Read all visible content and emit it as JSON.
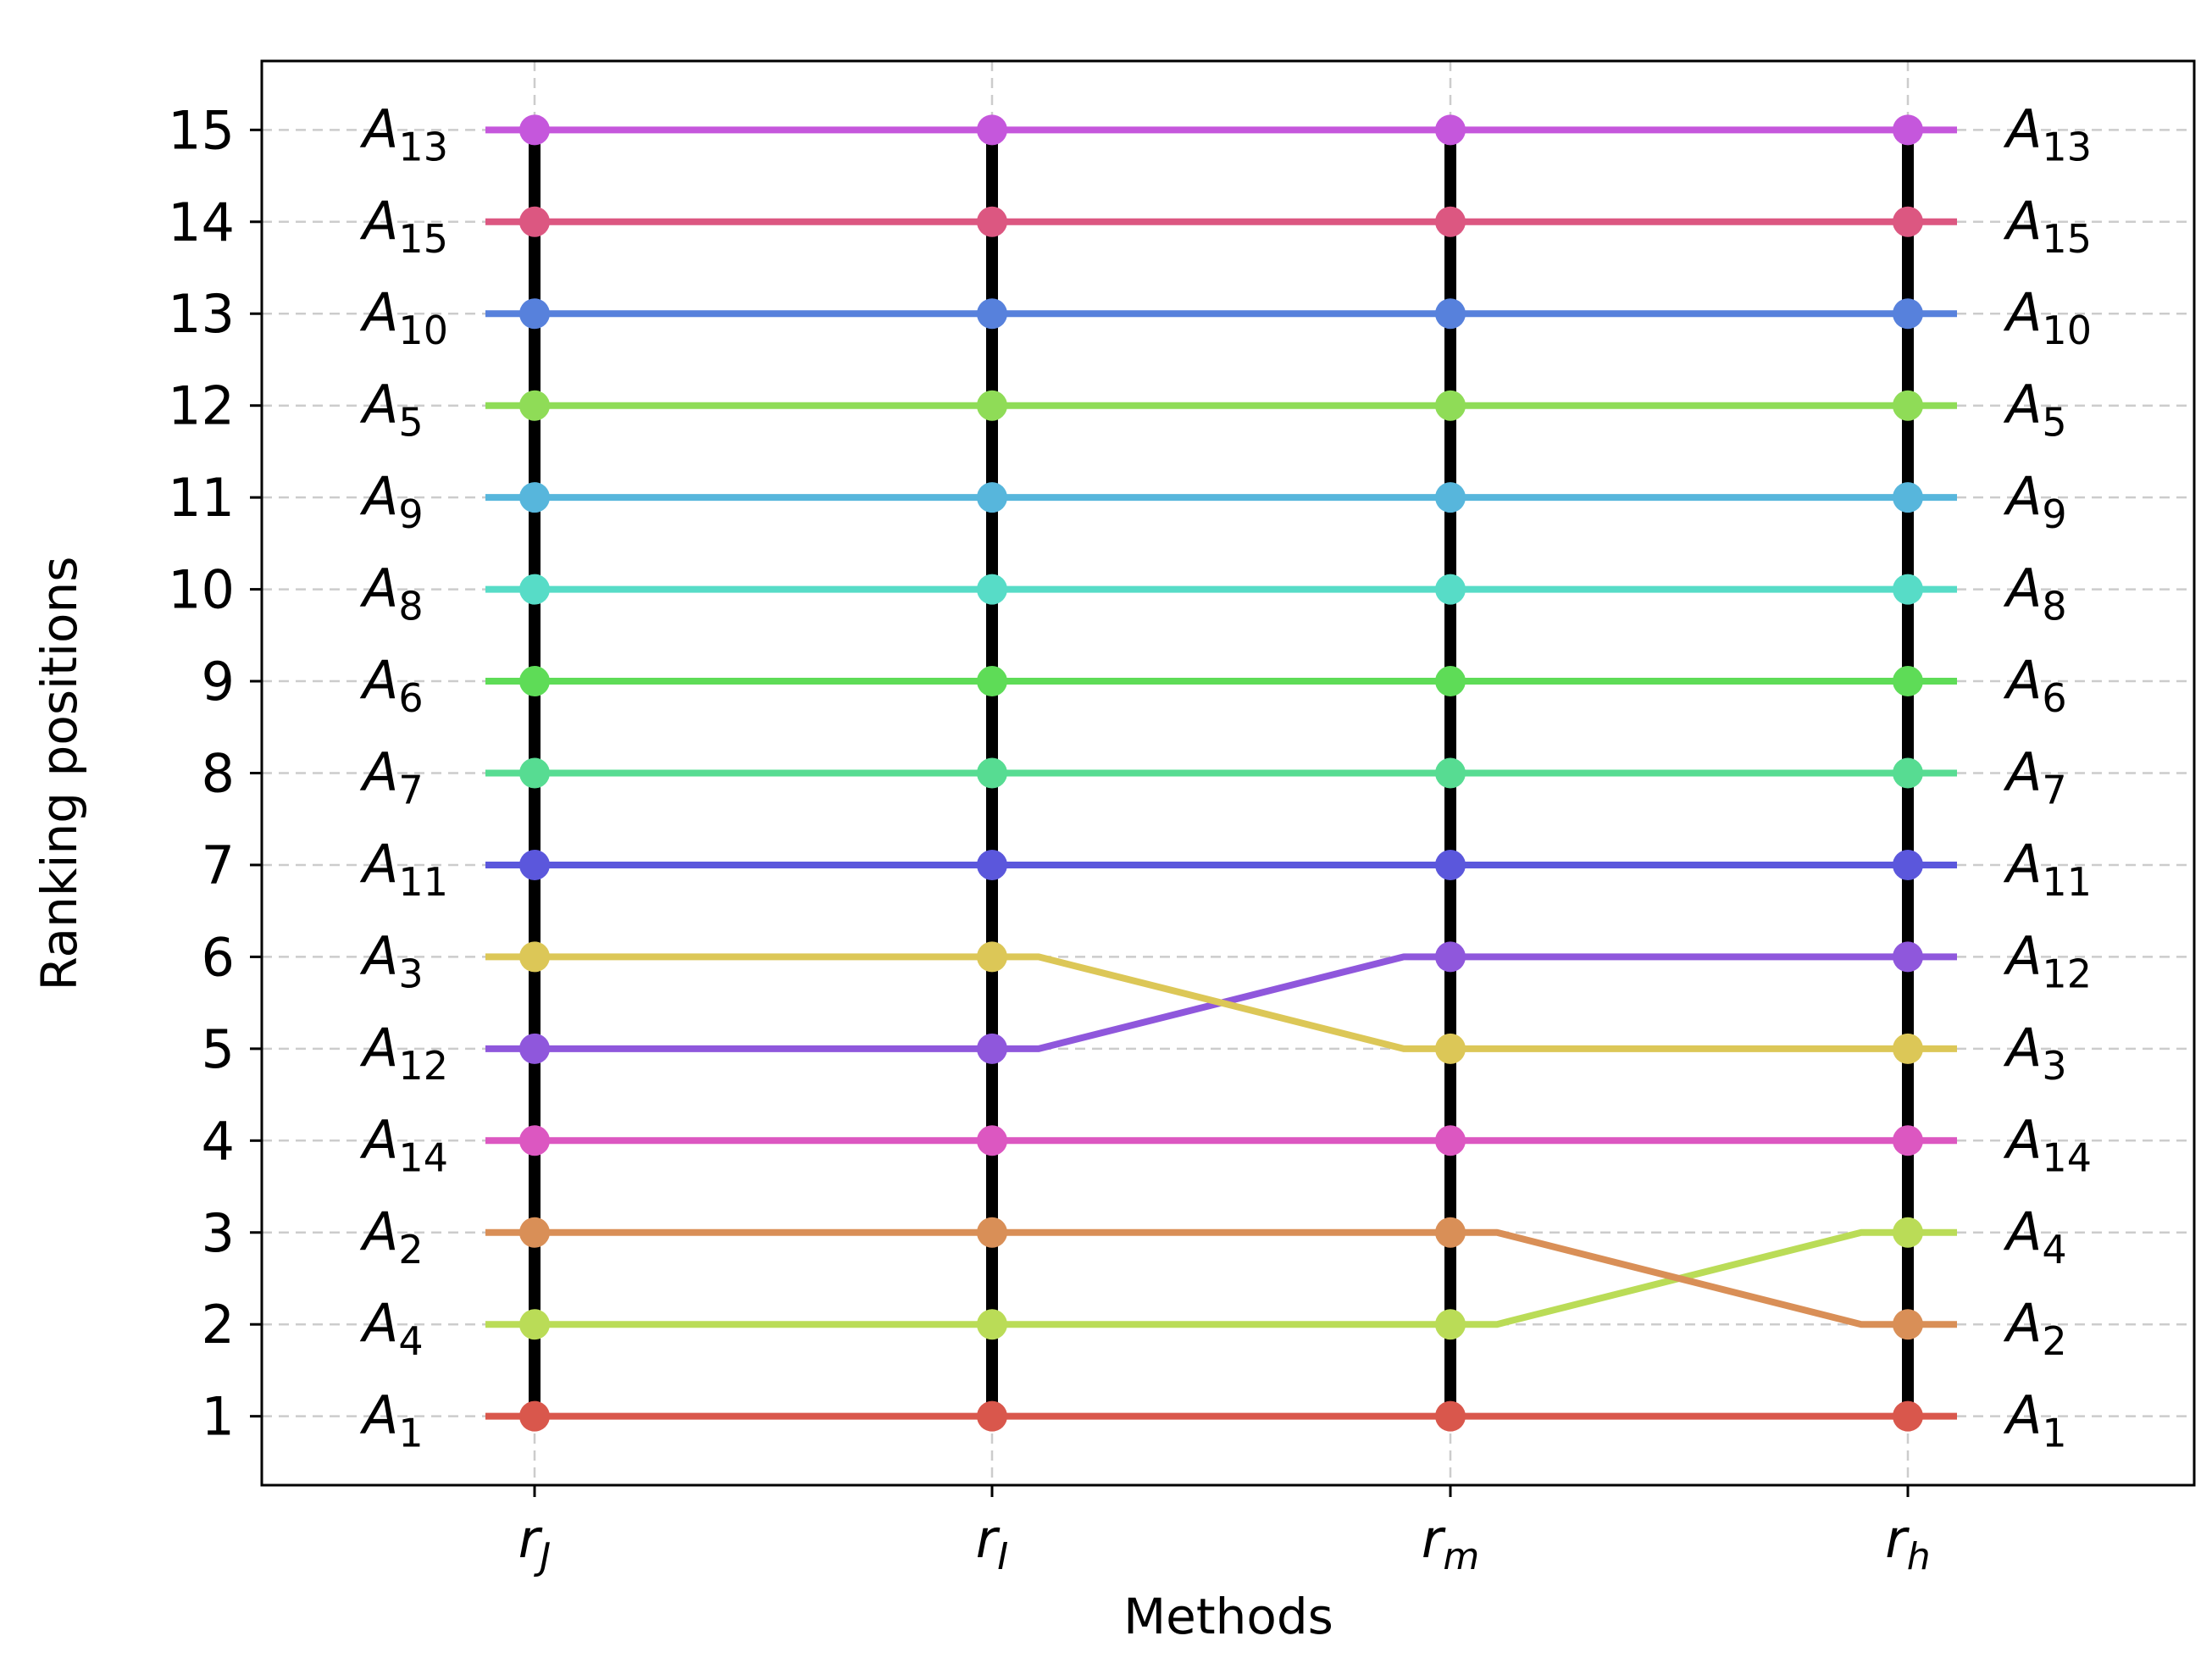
{
  "chart_data": {
    "type": "line",
    "title": "",
    "xlabel": "Methods",
    "ylabel": "Ranking positions",
    "ylim": [
      0.25,
      15.75
    ],
    "grid": true,
    "x_ticks": [
      {
        "base": "r",
        "sub": "J"
      },
      {
        "base": "r",
        "sub": "I"
      },
      {
        "base": "r",
        "sub": "m"
      },
      {
        "base": "r",
        "sub": "h"
      }
    ],
    "y_ticks": [
      "1",
      "2",
      "3",
      "4",
      "5",
      "6",
      "7",
      "8",
      "9",
      "10",
      "11",
      "12",
      "13",
      "14",
      "15"
    ],
    "series": [
      {
        "name": "A1",
        "label_base": "A",
        "label_sub": "1",
        "color": "#d9574c",
        "ranks": [
          1,
          1,
          1,
          1
        ]
      },
      {
        "name": "A4",
        "label_base": "A",
        "label_sub": "4",
        "color": "#badc57",
        "ranks": [
          2,
          2,
          2,
          3
        ]
      },
      {
        "name": "A2",
        "label_base": "A",
        "label_sub": "2",
        "color": "#d98f57",
        "ranks": [
          3,
          3,
          3,
          2
        ]
      },
      {
        "name": "A14",
        "label_base": "A",
        "label_sub": "14",
        "color": "#dc57c1",
        "ranks": [
          4,
          4,
          4,
          4
        ]
      },
      {
        "name": "A12",
        "label_base": "A",
        "label_sub": "12",
        "color": "#8f57dc",
        "ranks": [
          5,
          5,
          6,
          6
        ]
      },
      {
        "name": "A3",
        "label_base": "A",
        "label_sub": "3",
        "color": "#dcc757",
        "ranks": [
          6,
          6,
          5,
          5
        ]
      },
      {
        "name": "A11",
        "label_base": "A",
        "label_sub": "11",
        "color": "#5b57dc",
        "ranks": [
          7,
          7,
          7,
          7
        ]
      },
      {
        "name": "A7",
        "label_base": "A",
        "label_sub": "7",
        "color": "#57dc92",
        "ranks": [
          8,
          8,
          8,
          8
        ]
      },
      {
        "name": "A6",
        "label_base": "A",
        "label_sub": "6",
        "color": "#5edc57",
        "ranks": [
          9,
          9,
          9,
          9
        ]
      },
      {
        "name": "A8",
        "label_base": "A",
        "label_sub": "8",
        "color": "#57dcc7",
        "ranks": [
          10,
          10,
          10,
          10
        ]
      },
      {
        "name": "A9",
        "label_base": "A",
        "label_sub": "9",
        "color": "#57b6dc",
        "ranks": [
          11,
          11,
          11,
          11
        ]
      },
      {
        "name": "A5",
        "label_base": "A",
        "label_sub": "5",
        "color": "#8fdc57",
        "ranks": [
          12,
          12,
          12,
          12
        ]
      },
      {
        "name": "A10",
        "label_base": "A",
        "label_sub": "10",
        "color": "#5781dc",
        "ranks": [
          13,
          13,
          13,
          13
        ]
      },
      {
        "name": "A15",
        "label_base": "A",
        "label_sub": "15",
        "color": "#dc5781",
        "ranks": [
          14,
          14,
          14,
          14
        ]
      },
      {
        "name": "A13",
        "label_base": "A",
        "label_sub": "13",
        "color": "#c557dc",
        "ranks": [
          15,
          15,
          15,
          15
        ]
      }
    ]
  }
}
